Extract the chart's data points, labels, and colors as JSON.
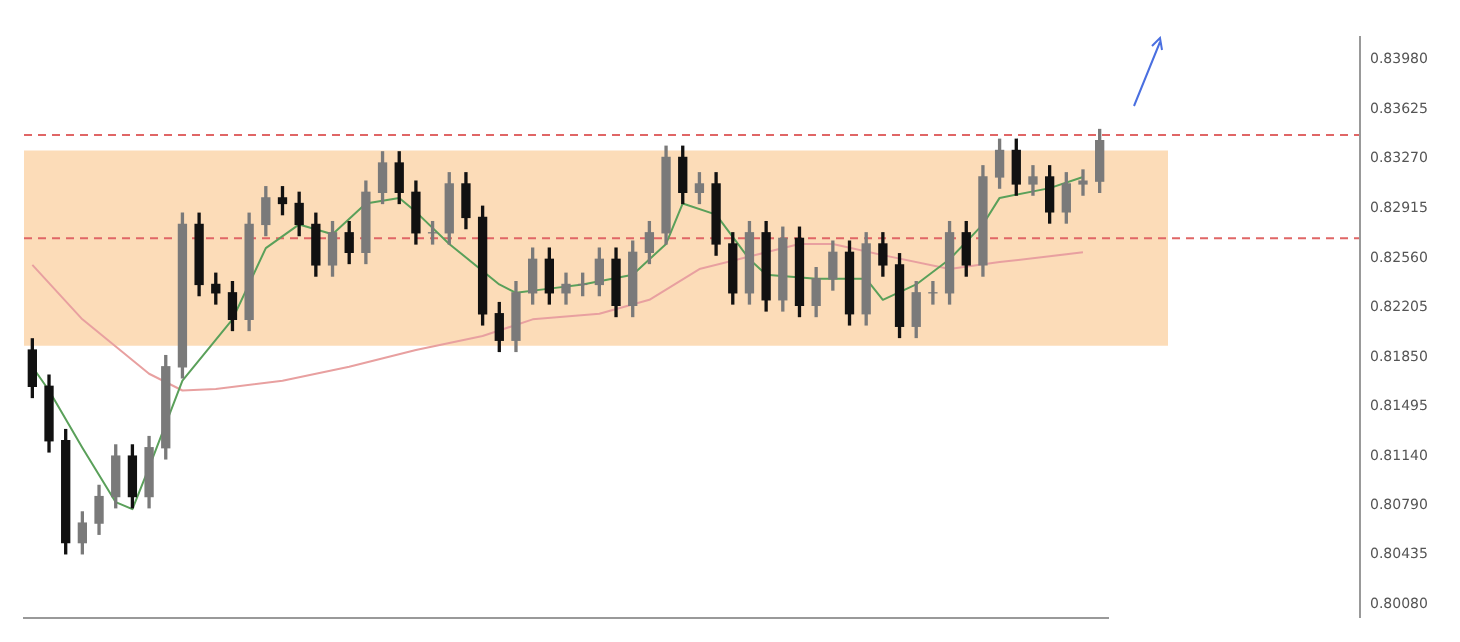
{
  "chart_data": {
    "type": "candlestick",
    "ylim": [
      0.7998,
      0.8415
    ],
    "categories": [
      null,
      null,
      null,
      null,
      null,
      null,
      null,
      null,
      null,
      null,
      null,
      null,
      null,
      null,
      null,
      null,
      null,
      null,
      null,
      null,
      null,
      null,
      null,
      null,
      null,
      null,
      null,
      null,
      null,
      null,
      null,
      null,
      null,
      null,
      null,
      null,
      null,
      null,
      null,
      null,
      null,
      null,
      null,
      null,
      null,
      null,
      null,
      null,
      null,
      null,
      null,
      null,
      null,
      null,
      null,
      null,
      null,
      null,
      null,
      null,
      null,
      null,
      null,
      null,
      null
    ],
    "yticks": [
      {
        "value": 0.8398,
        "label": "0.83980"
      },
      {
        "value": 0.83625,
        "label": "0.83625"
      },
      {
        "value": 0.8327,
        "label": "0.83270"
      },
      {
        "value": 0.82915,
        "label": "0.82915"
      },
      {
        "value": 0.8256,
        "label": "0.82560"
      },
      {
        "value": 0.82205,
        "label": "0.82205"
      },
      {
        "value": 0.8185,
        "label": "0.81850"
      },
      {
        "value": 0.81495,
        "label": "0.81495"
      },
      {
        "value": 0.8114,
        "label": "0.81140"
      },
      {
        "value": 0.8079,
        "label": "0.80790"
      },
      {
        "value": 0.80435,
        "label": "0.80435"
      },
      {
        "value": 0.8008,
        "label": "0.80080"
      }
    ],
    "tick_labels": "y",
    "grid": false,
    "ref_lines": [
      {
        "axis": "y",
        "value": 0.8344,
        "color": "#e06666",
        "line_style": "dashed"
      },
      {
        "axis": "y",
        "value": 0.827,
        "color": "#e06666",
        "line_style": "dashed"
      }
    ],
    "bands": [
      {
        "axis": "y",
        "from": 0.8193,
        "to": 0.8333,
        "color": "#fcdcb8"
      }
    ],
    "series": [
      {
        "colors": [
          "#111111",
          "#111111",
          "#111111",
          "#7a7a7a",
          "#7a7a7a",
          "#7a7a7a",
          "#111111",
          "#7a7a7a",
          "#7a7a7a",
          "#7a7a7a",
          "#111111",
          "#111111",
          "#111111",
          "#7a7a7a",
          "#7a7a7a",
          "#111111",
          "#111111",
          "#111111",
          "#7a7a7a",
          "#111111",
          "#7a7a7a",
          "#7a7a7a",
          "#111111",
          "#111111",
          "#7a7a7a",
          "#7a7a7a",
          "#111111",
          "#111111",
          "#111111",
          "#7a7a7a",
          "#7a7a7a",
          "#111111",
          "#7a7a7a",
          "#7a7a7a",
          "#7a7a7a",
          "#111111",
          "#7a7a7a",
          "#7a7a7a",
          "#7a7a7a",
          "#111111",
          "#7a7a7a",
          "#111111",
          "#111111",
          "#7a7a7a",
          "#111111",
          "#7a7a7a",
          "#111111",
          "#7a7a7a",
          "#7a7a7a",
          "#111111",
          "#7a7a7a",
          "#111111",
          "#111111",
          "#7a7a7a",
          "#7a7a7a",
          "#7a7a7a",
          "#111111",
          "#7a7a7a",
          "#7a7a7a",
          "#111111",
          "#7a7a7a",
          "#111111",
          "#7a7a7a",
          "#7a7a7a",
          "#7a7a7a"
        ],
        "ohlc": [
          [
            0.819,
            0.8198,
            0.8156,
            0.8164
          ],
          [
            0.8164,
            0.8172,
            0.8117,
            0.8125
          ],
          [
            0.8125,
            0.8133,
            0.8044,
            0.8052
          ],
          [
            0.8052,
            0.8074,
            0.8044,
            0.8066
          ],
          [
            0.8066,
            0.8093,
            0.8058,
            0.8085
          ],
          [
            0.8085,
            0.8122,
            0.8077,
            0.8114
          ],
          [
            0.8114,
            0.8122,
            0.8077,
            0.8085
          ],
          [
            0.8085,
            0.8128,
            0.8077,
            0.812
          ],
          [
            0.812,
            0.8186,
            0.8112,
            0.8178
          ],
          [
            0.8178,
            0.8288,
            0.817,
            0.828
          ],
          [
            0.828,
            0.8288,
            0.8229,
            0.8237
          ],
          [
            0.8237,
            0.8245,
            0.8223,
            0.8231
          ],
          [
            0.8231,
            0.8239,
            0.8204,
            0.8212
          ],
          [
            0.8212,
            0.8288,
            0.8204,
            0.828
          ],
          [
            0.828,
            0.8307,
            0.8272,
            0.8299
          ],
          [
            0.8299,
            0.8307,
            0.8287,
            0.8295
          ],
          [
            0.8295,
            0.8303,
            0.8272,
            0.828
          ],
          [
            0.828,
            0.8288,
            0.8243,
            0.8251
          ],
          [
            0.8251,
            0.8282,
            0.8243,
            0.8274
          ],
          [
            0.8274,
            0.8282,
            0.8252,
            0.826
          ],
          [
            0.826,
            0.8311,
            0.8252,
            0.8303
          ],
          [
            0.8303,
            0.8332,
            0.8295,
            0.8324
          ],
          [
            0.8324,
            0.8332,
            0.8295,
            0.8303
          ],
          [
            0.8303,
            0.8311,
            0.8266,
            0.8274
          ],
          [
            0.8274,
            0.8282,
            0.8266,
            0.8274
          ],
          [
            0.8274,
            0.8317,
            0.8266,
            0.8309
          ],
          [
            0.8309,
            0.8317,
            0.8277,
            0.8285
          ],
          [
            0.8285,
            0.8293,
            0.8208,
            0.8216
          ],
          [
            0.8216,
            0.8224,
            0.8189,
            0.8197
          ],
          [
            0.8197,
            0.8239,
            0.8189,
            0.8231
          ],
          [
            0.8231,
            0.8263,
            0.8223,
            0.8255
          ],
          [
            0.8255,
            0.8263,
            0.8223,
            0.8231
          ],
          [
            0.8231,
            0.8245,
            0.8223,
            0.8237
          ],
          [
            0.8237,
            0.8245,
            0.8229,
            0.8237
          ],
          [
            0.8237,
            0.8263,
            0.8229,
            0.8255
          ],
          [
            0.8255,
            0.8263,
            0.8214,
            0.8222
          ],
          [
            0.8222,
            0.8268,
            0.8214,
            0.826
          ],
          [
            0.826,
            0.8282,
            0.8252,
            0.8274
          ],
          [
            0.8274,
            0.8336,
            0.8266,
            0.8328
          ],
          [
            0.8328,
            0.8336,
            0.8295,
            0.8303
          ],
          [
            0.8303,
            0.8317,
            0.8295,
            0.8309
          ],
          [
            0.8309,
            0.8317,
            0.8258,
            0.8266
          ],
          [
            0.8266,
            0.8274,
            0.8223,
            0.8231
          ],
          [
            0.8231,
            0.8282,
            0.8223,
            0.8274
          ],
          [
            0.8274,
            0.8282,
            0.8218,
            0.8226
          ],
          [
            0.8226,
            0.8278,
            0.8218,
            0.827
          ],
          [
            0.827,
            0.8278,
            0.8214,
            0.8222
          ],
          [
            0.8222,
            0.8249,
            0.8214,
            0.8241
          ],
          [
            0.8241,
            0.8268,
            0.8233,
            0.826
          ],
          [
            0.826,
            0.8268,
            0.8208,
            0.8216
          ],
          [
            0.8216,
            0.8274,
            0.8208,
            0.8266
          ],
          [
            0.8266,
            0.8274,
            0.8243,
            0.8251
          ],
          [
            0.8251,
            0.8259,
            0.8199,
            0.8207
          ],
          [
            0.8207,
            0.8239,
            0.8199,
            0.8231
          ],
          [
            0.8231,
            0.8239,
            0.8223,
            0.8231
          ],
          [
            0.8231,
            0.8282,
            0.8223,
            0.8274
          ],
          [
            0.8274,
            0.8282,
            0.8243,
            0.8251
          ],
          [
            0.8251,
            0.8322,
            0.8243,
            0.8314
          ],
          [
            0.8314,
            0.8341,
            0.8306,
            0.8333
          ],
          [
            0.8333,
            0.8341,
            0.8301,
            0.8309
          ],
          [
            0.8309,
            0.8322,
            0.8301,
            0.8314
          ],
          [
            0.8314,
            0.8322,
            0.8281,
            0.8289
          ],
          [
            0.8289,
            0.8317,
            0.8281,
            0.8309
          ],
          [
            0.8309,
            0.8319,
            0.8301,
            0.8311
          ],
          [
            0.8311,
            0.8348,
            0.8303,
            0.834
          ]
        ]
      },
      {
        "type": "line",
        "color": "#5aa05a",
        "values": [
          0.8178,
          0.8161,
          null,
          0.812,
          null,
          0.8081,
          0.8076,
          0.8106,
          null,
          0.8168,
          null,
          null,
          0.8212,
          null,
          0.8263,
          null,
          0.828,
          null,
          0.8273,
          null,
          0.8295,
          null,
          0.8299,
          0.8289,
          null,
          0.8266,
          null,
          null,
          0.8237,
          0.8231,
          null,
          0.8234,
          null,
          0.8237,
          null,
          null,
          0.8244,
          null,
          0.8266,
          0.8295,
          null,
          0.8287,
          null,
          0.8255,
          0.8244,
          null,
          null,
          0.8241,
          null,
          null,
          0.8241,
          0.8226,
          null,
          0.8237,
          null,
          0.8255,
          null,
          0.828,
          0.8299,
          null,
          null,
          0.8306,
          null,
          0.8314,
          null
        ]
      },
      {
        "type": "line",
        "color": "#e8a0a0",
        "values": [
          0.8251,
          null,
          null,
          0.8212,
          null,
          null,
          null,
          0.8173,
          null,
          0.8161,
          null,
          0.8162,
          null,
          null,
          null,
          0.8168,
          null,
          null,
          null,
          0.8178,
          null,
          null,
          null,
          0.819,
          null,
          null,
          null,
          0.82,
          null,
          null,
          0.8212,
          null,
          null,
          null,
          0.8216,
          null,
          null,
          0.8226,
          null,
          null,
          0.8248,
          null,
          null,
          null,
          0.826,
          null,
          0.8266,
          null,
          0.8266,
          null,
          null,
          0.8258,
          null,
          null,
          null,
          0.8248,
          null,
          null,
          0.8253,
          null,
          null,
          null,
          null,
          0.826,
          null
        ]
      }
    ]
  }
}
